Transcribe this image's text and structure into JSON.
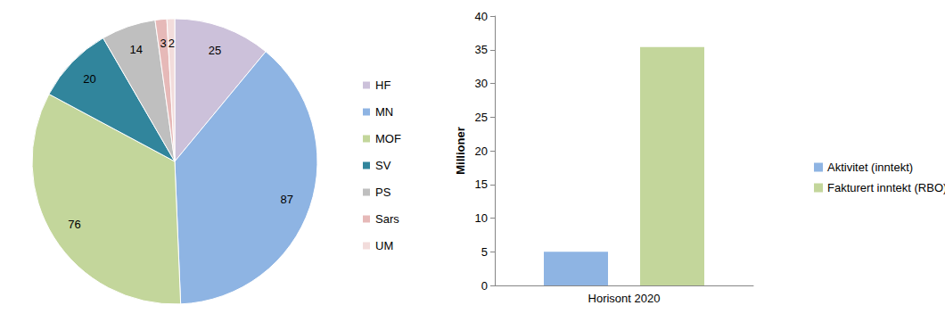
{
  "chart_data": [
    {
      "type": "pie",
      "categories": [
        "HF",
        "MN",
        "MOF",
        "SV",
        "PS",
        "Sars",
        "UM"
      ],
      "values": [
        25,
        87,
        76,
        20,
        14,
        3,
        2
      ],
      "colors": [
        "#ccc1da",
        "#8eb4e3",
        "#c3d69b",
        "#31859c",
        "#bfbfbf",
        "#e6b9b8",
        "#f2dcdb"
      ],
      "data_labels": true,
      "legend": "right"
    },
    {
      "type": "bar",
      "categories": [
        "Horisont 2020"
      ],
      "series": [
        {
          "name": "Aktivitet (inntekt)",
          "color": "#8eb4e3",
          "values": [
            5
          ]
        },
        {
          "name": "Fakturert inntekt (RBO)",
          "color": "#c3d69b",
          "values": [
            35.4
          ]
        }
      ],
      "ylabel": "Millioner",
      "ylim": [
        0,
        40
      ],
      "yticks": [
        0,
        5,
        10,
        15,
        20,
        25,
        30,
        35,
        40
      ],
      "grid": false,
      "legend": "right"
    }
  ]
}
